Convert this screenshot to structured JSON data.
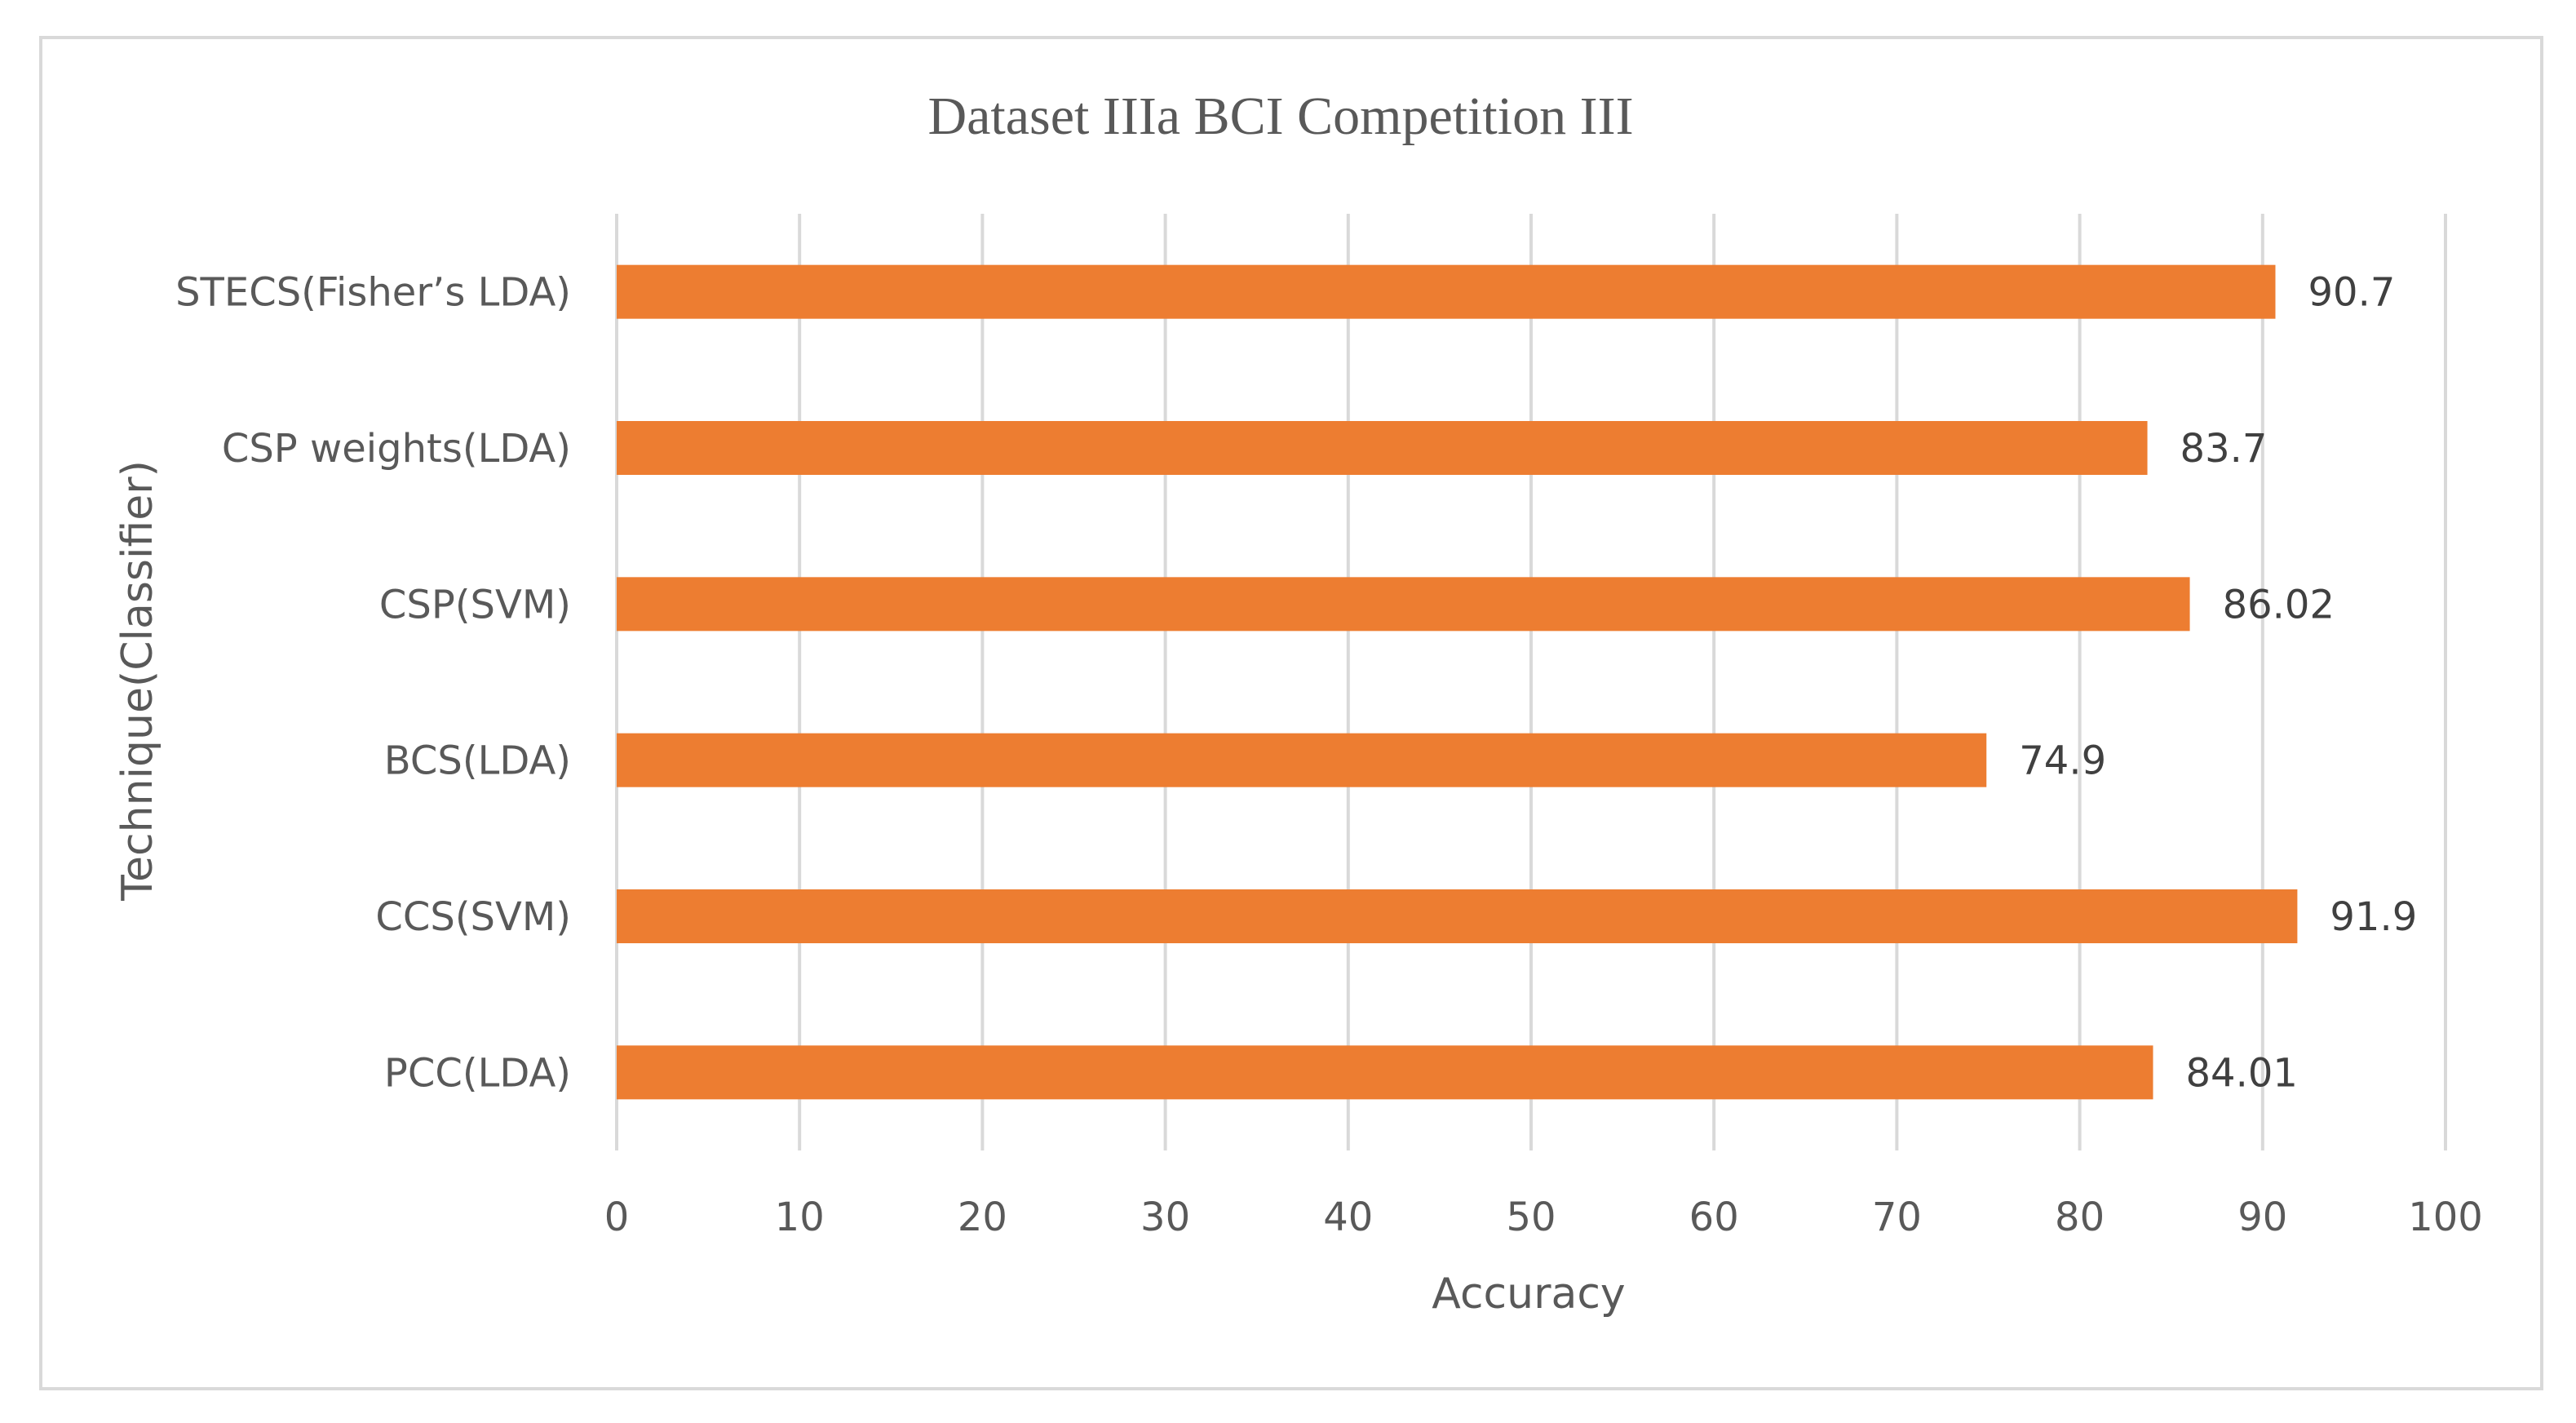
{
  "chart_data": {
    "type": "bar",
    "orientation": "horizontal",
    "title": "Dataset IIIa BCI Competition III",
    "xlabel": "Accuracy",
    "ylabel": "Technique(Classifier)",
    "categories": [
      "STECS(Fisher’s LDA)",
      "CSP weights(LDA)",
      "CSP(SVM)",
      "BCS(LDA)",
      "CCS(SVM)",
      "PCC(LDA)"
    ],
    "values": [
      90.7,
      83.7,
      86.02,
      74.9,
      91.9,
      84.01
    ],
    "value_labels": [
      "90.7",
      "83.7",
      "86.02",
      "74.9",
      "91.9",
      "84.01"
    ],
    "xlim": [
      0,
      100
    ],
    "xticks": [
      0,
      10,
      20,
      30,
      40,
      50,
      60,
      70,
      80,
      90,
      100
    ],
    "xtick_labels": [
      "0",
      "10",
      "20",
      "30",
      "40",
      "50",
      "60",
      "70",
      "80",
      "90",
      "100"
    ],
    "grid": "vertical",
    "legend": "none",
    "bar_color": "#ED7D31",
    "grid_color": "#D9D9D9"
  }
}
